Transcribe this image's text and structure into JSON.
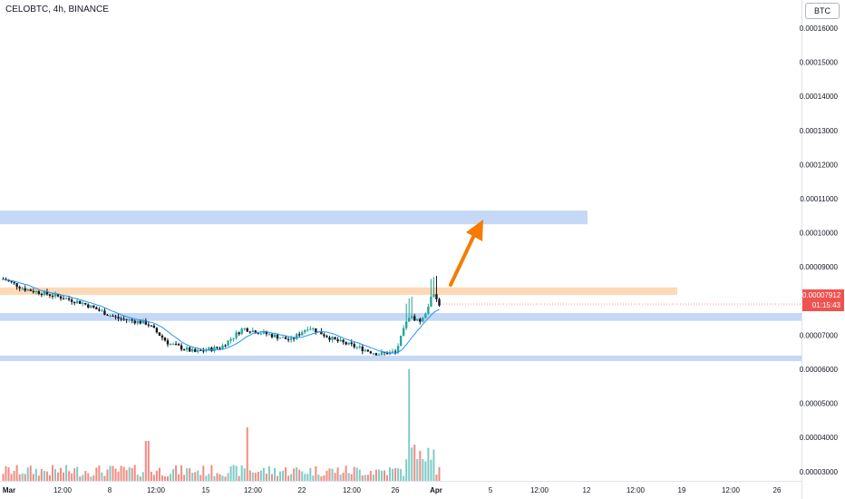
{
  "header": {
    "symbol_title": "CELOBTC, 4h, BINANCE",
    "currency": "BTC"
  },
  "last_price": {
    "price": "0.00007912",
    "countdown": "01:15:43"
  },
  "colors": {
    "up": "#26a69a",
    "down": "#131722",
    "volume_up": "#80cbc4",
    "volume_down": "#f28b82",
    "ma_line": "#2196f3",
    "support_zone": "#c5d8f5",
    "resistance_zone": "#fdd9b5",
    "arrow": "#f57c00",
    "price_tag": "#ef5350"
  },
  "chart_data": {
    "type": "candlestick",
    "symbol": "CELOBTC",
    "interval": "4h",
    "exchange": "BINANCE",
    "y_axis": {
      "ticks": [
        "0.00016000",
        "0.00015000",
        "0.00014000",
        "0.00013000",
        "0.00012000",
        "0.00011000",
        "0.00010000",
        "0.00009000",
        "0.00007000",
        "0.00006000",
        "0.00005000",
        "0.00004000",
        "0.00003000"
      ],
      "range": [
        2.5e-05,
        0.000162
      ]
    },
    "x_axis": {
      "ticks": [
        "Mar",
        "12:00",
        "8",
        "12:00",
        "15",
        "12:00",
        "22",
        "12:00",
        "26",
        "Apr",
        "5",
        "12:00",
        "12",
        "12:00",
        "19",
        "12:00",
        "26"
      ]
    },
    "last_price": 7.912e-05,
    "price_path": [
      {
        "t": 0,
        "p": 8.65e-05
      },
      {
        "t": 0.05,
        "p": 8.35e-05
      },
      {
        "t": 0.12,
        "p": 8.15e-05
      },
      {
        "t": 0.18,
        "p": 7.95e-05
      },
      {
        "t": 0.26,
        "p": 7.5e-05
      },
      {
        "t": 0.33,
        "p": 7.35e-05
      },
      {
        "t": 0.38,
        "p": 6.75e-05
      },
      {
        "t": 0.44,
        "p": 6.5e-05
      },
      {
        "t": 0.5,
        "p": 6.65e-05
      },
      {
        "t": 0.55,
        "p": 7.2e-05
      },
      {
        "t": 0.6,
        "p": 7.05e-05
      },
      {
        "t": 0.66,
        "p": 6.85e-05
      },
      {
        "t": 0.7,
        "p": 7.25e-05
      },
      {
        "t": 0.76,
        "p": 6.85e-05
      },
      {
        "t": 0.81,
        "p": 6.65e-05
      },
      {
        "t": 0.86,
        "p": 6.45e-05
      },
      {
        "t": 0.9,
        "p": 6.5e-05
      },
      {
        "t": 0.93,
        "p": 7.55e-05
      },
      {
        "t": 0.96,
        "p": 7.4e-05
      },
      {
        "t": 0.985,
        "p": 8.2e-05
      },
      {
        "t": 1,
        "p": 7.912e-05
      }
    ],
    "volume_spikes": [
      {
        "t": 0.33,
        "v": 3.9e-05
      },
      {
        "t": 0.56,
        "v": 4.3e-05
      },
      {
        "t": 0.93,
        "v": 6e-05
      }
    ],
    "zones": [
      {
        "kind": "resistance_target",
        "low": 0.0001025,
        "high": 0.0001065
      },
      {
        "kind": "resistance",
        "low": 8.18e-05,
        "high": 8.4e-05
      },
      {
        "kind": "support",
        "low": 7.42e-05,
        "high": 7.65e-05
      },
      {
        "kind": "support",
        "low": 6.25e-05,
        "high": 6.4e-05
      }
    ],
    "grid": false,
    "legend": "none"
  }
}
